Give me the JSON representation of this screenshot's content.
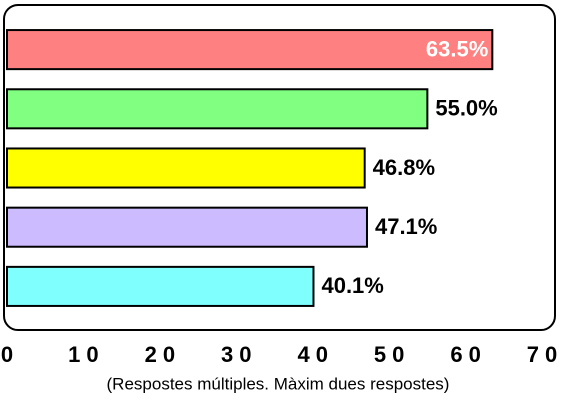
{
  "chart_data": {
    "type": "bar",
    "orientation": "horizontal",
    "x_label": "(Respostes múltiples. Màxim dues respostes)",
    "categories": [
      null,
      null,
      null,
      null,
      null
    ],
    "values": [
      63.5,
      55.0,
      46.8,
      47.1,
      40.1
    ],
    "value_labels": [
      "63.5%",
      "55.0%",
      "46.8%",
      "47.1%",
      "40.1%"
    ],
    "colors": [
      "#ff8080",
      "#80ff80",
      "#ffff00",
      "#ccbbff",
      "#80ffff"
    ],
    "xlim": [
      0,
      70
    ],
    "xticks": [
      0,
      10,
      20,
      30,
      40,
      50,
      60,
      70
    ]
  }
}
